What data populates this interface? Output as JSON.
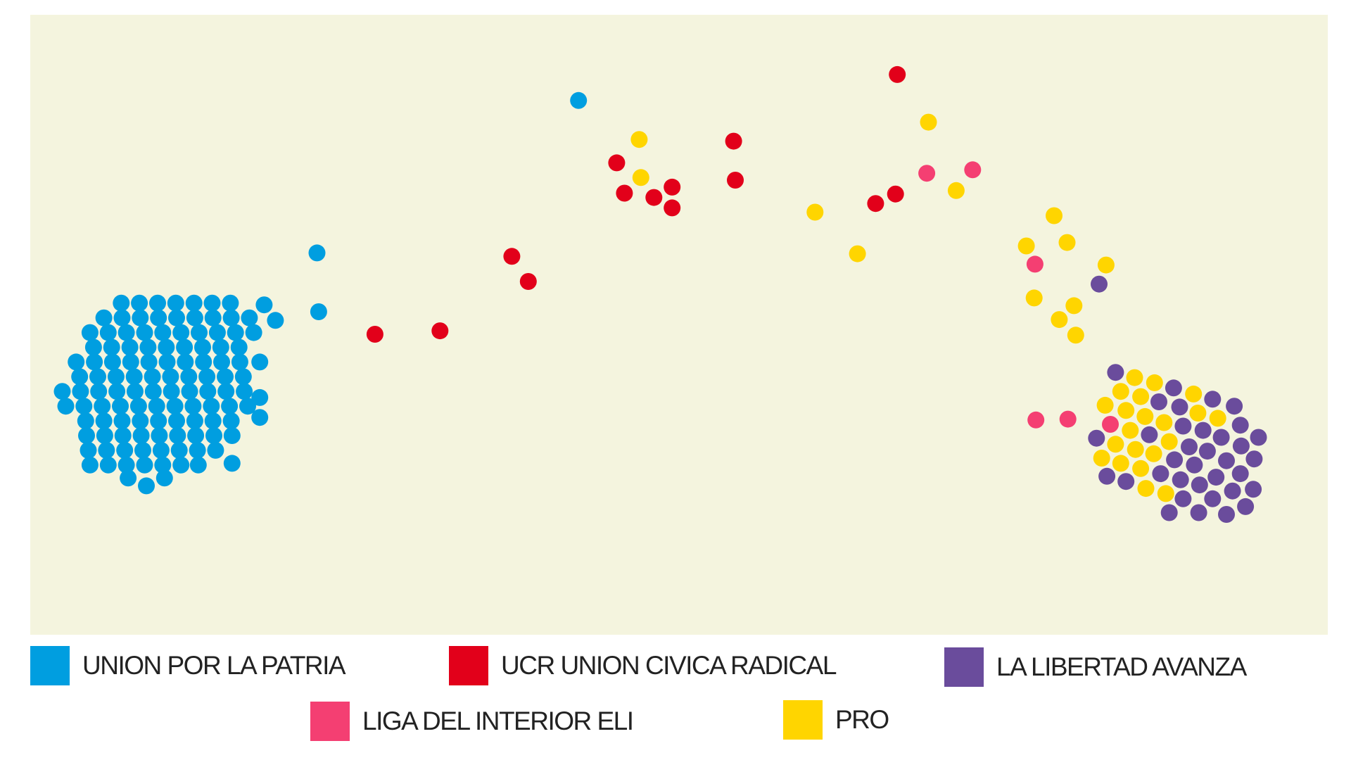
{
  "chart_data": {
    "type": "scatter",
    "title": "",
    "xlabel": "",
    "ylabel": "",
    "xlim": [
      3.5,
      153.3
    ],
    "ylim": [
      73.3,
      1.7
    ],
    "grid": false,
    "axes_visible": false,
    "background": "#f4f4de",
    "legend_position": "bottom",
    "series": [
      {
        "key": "upp",
        "name": "UNION POR LA PATRIA",
        "color": "#009ee0",
        "points": [
          [
            14.0,
            35.0
          ],
          [
            16.1,
            35.0
          ],
          [
            18.2,
            35.0
          ],
          [
            20.3,
            35.0
          ],
          [
            22.4,
            35.0
          ],
          [
            24.5,
            35.0
          ],
          [
            26.6,
            35.0
          ],
          [
            30.5,
            35.2
          ],
          [
            12.0,
            36.7
          ],
          [
            14.1,
            36.7
          ],
          [
            16.2,
            36.7
          ],
          [
            18.3,
            36.7
          ],
          [
            20.4,
            36.7
          ],
          [
            22.5,
            36.7
          ],
          [
            24.6,
            36.7
          ],
          [
            26.7,
            36.7
          ],
          [
            28.8,
            36.7
          ],
          [
            31.8,
            37.0
          ],
          [
            10.4,
            38.4
          ],
          [
            12.5,
            38.4
          ],
          [
            14.6,
            38.4
          ],
          [
            16.7,
            38.4
          ],
          [
            18.8,
            38.4
          ],
          [
            20.9,
            38.4
          ],
          [
            23.0,
            38.4
          ],
          [
            25.1,
            38.4
          ],
          [
            27.2,
            38.4
          ],
          [
            29.3,
            38.4
          ],
          [
            10.8,
            40.1
          ],
          [
            12.9,
            40.1
          ],
          [
            15.0,
            40.1
          ],
          [
            17.1,
            40.1
          ],
          [
            19.2,
            40.1
          ],
          [
            21.3,
            40.1
          ],
          [
            23.4,
            40.1
          ],
          [
            25.5,
            40.1
          ],
          [
            27.6,
            40.1
          ],
          [
            8.8,
            41.8
          ],
          [
            10.9,
            41.8
          ],
          [
            13.0,
            41.8
          ],
          [
            15.1,
            41.8
          ],
          [
            17.2,
            41.8
          ],
          [
            19.3,
            41.8
          ],
          [
            21.4,
            41.8
          ],
          [
            23.5,
            41.8
          ],
          [
            25.6,
            41.8
          ],
          [
            27.7,
            41.8
          ],
          [
            30.0,
            41.8
          ],
          [
            9.2,
            43.5
          ],
          [
            11.3,
            43.5
          ],
          [
            13.4,
            43.5
          ],
          [
            15.5,
            43.5
          ],
          [
            17.6,
            43.5
          ],
          [
            19.7,
            43.5
          ],
          [
            21.8,
            43.5
          ],
          [
            23.9,
            43.5
          ],
          [
            26.0,
            43.5
          ],
          [
            28.1,
            43.5
          ],
          [
            7.2,
            45.2
          ],
          [
            9.3,
            45.2
          ],
          [
            11.4,
            45.2
          ],
          [
            13.5,
            45.2
          ],
          [
            15.6,
            45.2
          ],
          [
            17.7,
            45.2
          ],
          [
            19.8,
            45.2
          ],
          [
            21.9,
            45.2
          ],
          [
            24.0,
            45.2
          ],
          [
            26.1,
            45.2
          ],
          [
            28.2,
            45.2
          ],
          [
            30.0,
            45.9
          ],
          [
            7.6,
            46.9
          ],
          [
            9.7,
            46.9
          ],
          [
            11.8,
            46.9
          ],
          [
            13.9,
            46.9
          ],
          [
            16.0,
            46.9
          ],
          [
            18.1,
            46.9
          ],
          [
            20.2,
            46.9
          ],
          [
            22.3,
            46.9
          ],
          [
            24.4,
            46.9
          ],
          [
            26.5,
            46.9
          ],
          [
            28.6,
            46.9
          ],
          [
            9.9,
            48.6
          ],
          [
            12.0,
            48.6
          ],
          [
            14.1,
            48.6
          ],
          [
            16.2,
            48.6
          ],
          [
            18.3,
            48.6
          ],
          [
            20.4,
            48.6
          ],
          [
            22.5,
            48.6
          ],
          [
            24.6,
            48.6
          ],
          [
            26.7,
            48.6
          ],
          [
            30.0,
            48.2
          ],
          [
            10.0,
            50.3
          ],
          [
            12.1,
            50.3
          ],
          [
            14.2,
            50.3
          ],
          [
            16.3,
            50.3
          ],
          [
            18.4,
            50.3
          ],
          [
            20.5,
            50.3
          ],
          [
            22.6,
            50.3
          ],
          [
            24.7,
            50.3
          ],
          [
            26.8,
            50.3
          ],
          [
            10.2,
            52.0
          ],
          [
            12.3,
            52.0
          ],
          [
            14.4,
            52.0
          ],
          [
            16.5,
            52.0
          ],
          [
            18.6,
            52.0
          ],
          [
            20.7,
            52.0
          ],
          [
            22.8,
            52.0
          ],
          [
            24.9,
            52.0
          ],
          [
            10.4,
            53.7
          ],
          [
            12.5,
            53.7
          ],
          [
            14.6,
            53.7
          ],
          [
            16.7,
            53.7
          ],
          [
            18.8,
            53.7
          ],
          [
            20.9,
            53.7
          ],
          [
            22.9,
            53.7
          ],
          [
            26.8,
            53.5
          ],
          [
            14.8,
            55.2
          ],
          [
            16.9,
            56.1
          ],
          [
            19.0,
            55.2
          ],
          [
            66.8,
            11.6
          ],
          [
            36.6,
            29.2
          ],
          [
            36.8,
            36.0
          ]
        ]
      },
      {
        "key": "ucr",
        "name": "UCR UNION CIVICA RADICAL",
        "color": "#e2001a",
        "points": [
          [
            103.6,
            8.6
          ],
          [
            84.7,
            16.3
          ],
          [
            71.2,
            18.8
          ],
          [
            84.9,
            20.8
          ],
          [
            77.6,
            21.6
          ],
          [
            72.1,
            22.3
          ],
          [
            75.5,
            22.8
          ],
          [
            77.6,
            24.0
          ],
          [
            101.1,
            23.5
          ],
          [
            103.4,
            22.4
          ],
          [
            59.1,
            29.6
          ],
          [
            61.0,
            32.5
          ],
          [
            43.3,
            38.6
          ],
          [
            50.8,
            38.2
          ]
        ]
      },
      {
        "key": "lla",
        "name": "LA LIBERTAD AVANZA",
        "color": "#6a4c9c",
        "points": [
          [
            126.9,
            32.8
          ],
          [
            128.8,
            43.0
          ],
          [
            135.5,
            44.8
          ],
          [
            133.8,
            46.4
          ],
          [
            140.0,
            46.1
          ],
          [
            142.5,
            46.9
          ],
          [
            136.2,
            47.0
          ],
          [
            136.6,
            49.2
          ],
          [
            138.9,
            49.7
          ],
          [
            141.0,
            50.5
          ],
          [
            143.2,
            49.1
          ],
          [
            145.3,
            50.5
          ],
          [
            132.7,
            50.2
          ],
          [
            126.6,
            50.6
          ],
          [
            137.3,
            51.6
          ],
          [
            139.4,
            52.1
          ],
          [
            141.6,
            53.2
          ],
          [
            143.3,
            51.5
          ],
          [
            144.8,
            53.0
          ],
          [
            135.6,
            53.1
          ],
          [
            137.9,
            53.7
          ],
          [
            134.0,
            54.7
          ],
          [
            136.3,
            55.4
          ],
          [
            140.4,
            55.1
          ],
          [
            143.2,
            54.7
          ],
          [
            127.8,
            55.0
          ],
          [
            130.0,
            55.6
          ],
          [
            138.5,
            56.0
          ],
          [
            144.7,
            56.5
          ],
          [
            136.6,
            57.6
          ],
          [
            140.0,
            57.6
          ],
          [
            142.3,
            56.7
          ],
          [
            135.0,
            59.2
          ],
          [
            138.4,
            59.2
          ],
          [
            141.6,
            59.4
          ],
          [
            143.8,
            58.5
          ]
        ]
      },
      {
        "key": "liga",
        "name": "LIGA DEL INTERIOR ELI",
        "color": "#f43f72",
        "points": [
          [
            107.0,
            20.0
          ],
          [
            112.3,
            19.6
          ],
          [
            119.5,
            30.5
          ],
          [
            119.6,
            48.5
          ],
          [
            123.3,
            48.4
          ],
          [
            128.2,
            49.0
          ]
        ]
      },
      {
        "key": "pro",
        "name": "PRO",
        "color": "#ffd500",
        "points": [
          [
            73.8,
            16.1
          ],
          [
            74.0,
            20.5
          ],
          [
            107.2,
            14.1
          ],
          [
            110.4,
            22.0
          ],
          [
            94.1,
            24.5
          ],
          [
            99.0,
            29.3
          ],
          [
            121.7,
            24.9
          ],
          [
            123.2,
            28.0
          ],
          [
            118.5,
            28.4
          ],
          [
            127.7,
            30.6
          ],
          [
            119.4,
            34.4
          ],
          [
            124.0,
            35.3
          ],
          [
            122.3,
            36.9
          ],
          [
            124.2,
            38.7
          ],
          [
            131.0,
            43.6
          ],
          [
            133.3,
            44.2
          ],
          [
            129.4,
            45.2
          ],
          [
            131.7,
            45.8
          ],
          [
            137.8,
            45.5
          ],
          [
            127.6,
            46.8
          ],
          [
            130.0,
            47.4
          ],
          [
            132.2,
            48.1
          ],
          [
            138.3,
            47.7
          ],
          [
            140.6,
            48.3
          ],
          [
            134.4,
            48.8
          ],
          [
            130.5,
            49.7
          ],
          [
            135.0,
            51.0
          ],
          [
            128.8,
            51.3
          ],
          [
            131.1,
            51.9
          ],
          [
            133.2,
            52.4
          ],
          [
            127.2,
            52.9
          ],
          [
            129.4,
            53.5
          ],
          [
            131.7,
            54.1
          ],
          [
            132.3,
            56.4
          ],
          [
            134.6,
            57.0
          ]
        ]
      }
    ]
  }
}
